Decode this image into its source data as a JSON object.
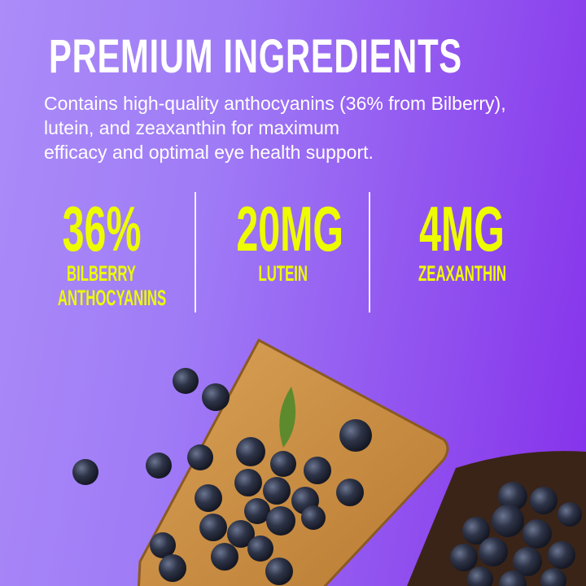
{
  "title": "PREMIUM INGREDIENTS",
  "description": [
    "Contains high-quality anthocyanins (36% from Bilberry),",
    "lutein, and zeaxanthin for maximum",
    "efficacy and optimal eye health support."
  ],
  "stats": [
    {
      "value": "36%",
      "label": [
        "BILBERRY",
        "ANTHOCYANINS"
      ]
    },
    {
      "value": "20MG",
      "label": [
        "LUTEIN"
      ]
    },
    {
      "value": "4MG",
      "label": [
        "ZEAXANTHIN"
      ]
    }
  ],
  "colors": {
    "accent": "#eefc00",
    "background_start": "#ab8cf8",
    "background_end": "#8530ea"
  }
}
